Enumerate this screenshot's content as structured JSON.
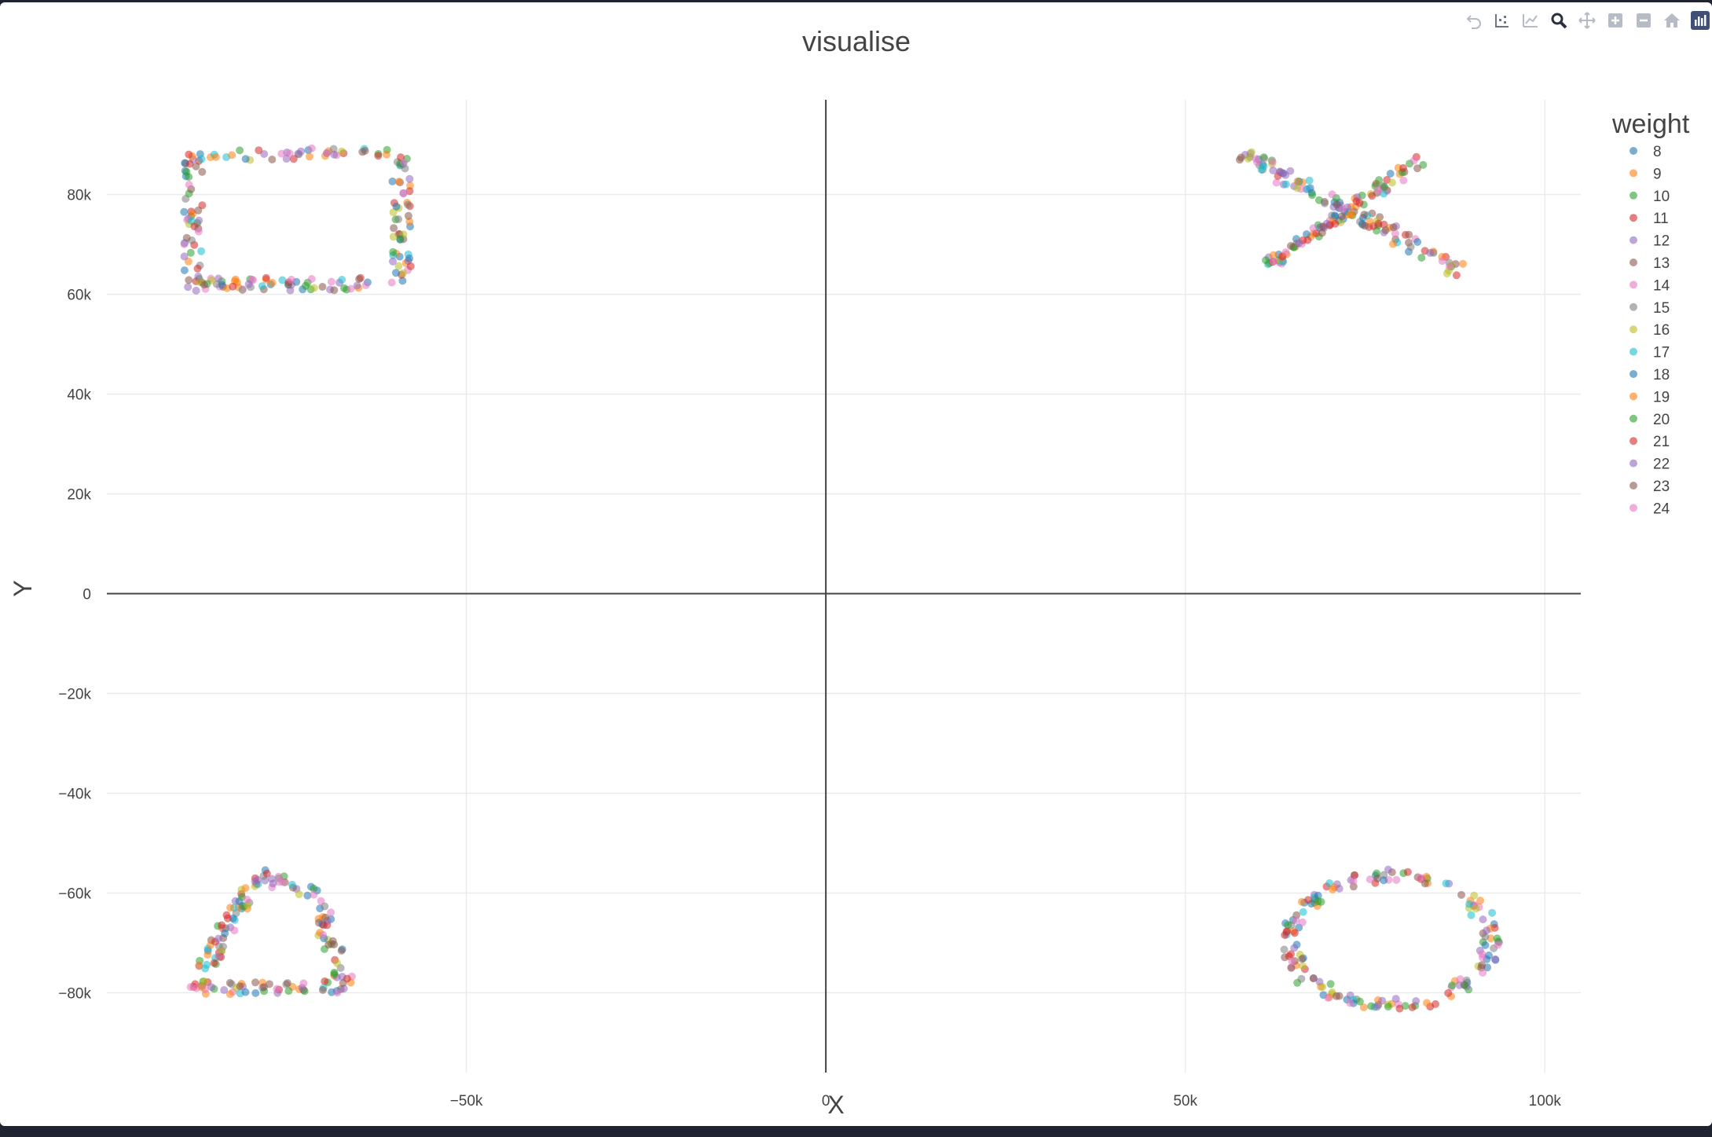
{
  "modebar": {
    "buttons": [
      {
        "icon": "undo-icon"
      },
      {
        "icon": "compare-hover-icon"
      },
      {
        "icon": "spike-lines-icon"
      },
      {
        "icon": "zoom-icon"
      },
      {
        "icon": "pan-icon"
      },
      {
        "icon": "zoom-in-icon"
      },
      {
        "icon": "zoom-out-icon"
      },
      {
        "icon": "reset-axes-icon"
      },
      {
        "icon": "plotly-logo-icon"
      }
    ]
  },
  "chart_data": {
    "type": "scatter",
    "title": "visualise",
    "xlabel": "X",
    "ylabel": "Y",
    "xlim": [
      -100000,
      105000
    ],
    "ylim": [
      -96000,
      99000
    ],
    "x_ticks": [
      {
        "value": -50000,
        "label": "−50k"
      },
      {
        "value": 0,
        "label": "0"
      },
      {
        "value": 50000,
        "label": "50k"
      },
      {
        "value": 100000,
        "label": "100k"
      }
    ],
    "y_ticks": [
      {
        "value": -80000,
        "label": "−80k"
      },
      {
        "value": -60000,
        "label": "−60k"
      },
      {
        "value": -40000,
        "label": "−40k"
      },
      {
        "value": -20000,
        "label": "−20k"
      },
      {
        "value": 0,
        "label": "0"
      },
      {
        "value": 20000,
        "label": "20k"
      },
      {
        "value": 40000,
        "label": "40k"
      },
      {
        "value": 60000,
        "label": "60k"
      },
      {
        "value": 80000,
        "label": "80k"
      }
    ],
    "grid": true,
    "legend": {
      "title": "weight",
      "placement": "right"
    },
    "series": [
      {
        "name": "8",
        "color": "#1f77b4"
      },
      {
        "name": "9",
        "color": "#ff7f0e"
      },
      {
        "name": "10",
        "color": "#2ca02c"
      },
      {
        "name": "11",
        "color": "#d62728"
      },
      {
        "name": "12",
        "color": "#9467bd"
      },
      {
        "name": "13",
        "color": "#8c564b"
      },
      {
        "name": "14",
        "color": "#e377c2"
      },
      {
        "name": "15",
        "color": "#7f7f7f"
      },
      {
        "name": "16",
        "color": "#bcbd22"
      },
      {
        "name": "17",
        "color": "#17becf"
      },
      {
        "name": "18",
        "color": "#1f77b4"
      },
      {
        "name": "19",
        "color": "#ff7f0e"
      },
      {
        "name": "20",
        "color": "#2ca02c"
      },
      {
        "name": "21",
        "color": "#d62728"
      },
      {
        "name": "22",
        "color": "#9467bd"
      },
      {
        "name": "23",
        "color": "#8c564b"
      },
      {
        "name": "24",
        "color": "#e377c2"
      }
    ],
    "clusters": [
      {
        "shape": "rectangle",
        "x_range": [
          -88000,
          -59000
        ],
        "y_range": [
          61000,
          89000
        ],
        "outline": [
          [
            -88000,
            88000
          ],
          [
            -59000,
            88000
          ],
          [
            -59000,
            62000
          ],
          [
            -88000,
            62000
          ],
          [
            -88000,
            88000
          ]
        ],
        "points_per_series": 12
      },
      {
        "shape": "x",
        "x_range": [
          58000,
          88000
        ],
        "y_range": [
          64000,
          89000
        ],
        "segments": [
          [
            [
              58000,
              88000
            ],
            [
              88000,
              65000
            ]
          ],
          [
            [
              62000,
              66000
            ],
            [
              83000,
              87000
            ]
          ]
        ],
        "points_per_series": 12
      },
      {
        "shape": "triangle",
        "x_range": [
          -88000,
          -67000
        ],
        "y_range": [
          -82000,
          -56000
        ],
        "outline": [
          [
            -88000,
            -79000
          ],
          [
            -79000,
            -56000
          ],
          [
            -71000,
            -60000
          ],
          [
            -67000,
            -79000
          ],
          [
            -88000,
            -79000
          ]
        ],
        "points_per_series": 10
      },
      {
        "shape": "ellipse",
        "x_range": [
          64000,
          94000
        ],
        "y_range": [
          -83000,
          -56000
        ],
        "center": [
          78500,
          -69500
        ],
        "radii": [
          14000,
          13000
        ],
        "points_per_series": 10
      }
    ]
  }
}
